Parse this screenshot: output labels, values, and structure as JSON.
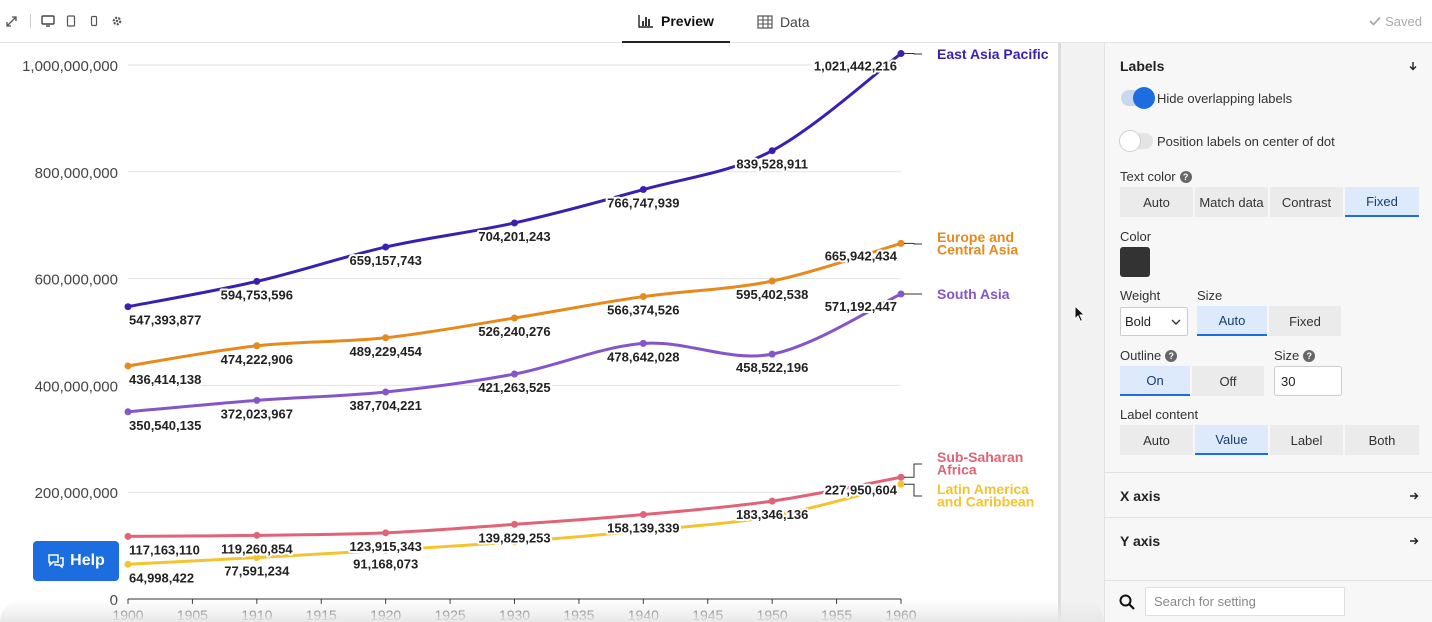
{
  "toolbar": {
    "tabs": [
      {
        "label": "Preview",
        "icon": "bar-chart-icon",
        "active": true
      },
      {
        "label": "Data",
        "icon": "table-icon",
        "active": false
      }
    ],
    "saved_label": "Saved"
  },
  "help": {
    "label": "Help"
  },
  "panel": {
    "labels_section": {
      "title": "Labels",
      "hide_overlapping": {
        "label": "Hide overlapping labels",
        "on": true
      },
      "position_center": {
        "label": "Position labels on center of dot",
        "on": false
      },
      "text_color": {
        "label": "Text color",
        "options": [
          "Auto",
          "Match data",
          "Contrast",
          "Fixed"
        ],
        "selected": "Fixed"
      },
      "color": {
        "label": "Color",
        "value": "#333333"
      },
      "weight": {
        "label": "Weight",
        "value": "Bold"
      },
      "size": {
        "label": "Size",
        "options": [
          "Auto",
          "Fixed"
        ],
        "selected": "Auto"
      },
      "outline": {
        "label": "Outline",
        "options": [
          "On",
          "Off"
        ],
        "selected": "On"
      },
      "outline_size": {
        "label": "Size",
        "value": "30"
      },
      "label_content": {
        "label": "Label content",
        "options": [
          "Auto",
          "Value",
          "Label",
          "Both"
        ],
        "selected": "Value"
      }
    },
    "x_axis": "X axis",
    "y_axis": "Y axis",
    "search": {
      "placeholder": "Search for setting"
    }
  },
  "chart_data": {
    "type": "line",
    "x": [
      1900,
      1910,
      1920,
      1930,
      1940,
      1950,
      1960
    ],
    "xlim": [
      1900,
      1960
    ],
    "ylim": [
      0,
      1000000000
    ],
    "xticks": [
      "1900",
      "1905",
      "1910",
      "1915",
      "1920",
      "1925",
      "1930",
      "1935",
      "1940",
      "1945",
      "1950",
      "1955",
      "1960"
    ],
    "yticks": [
      "0",
      "200,000,000",
      "400,000,000",
      "600,000,000",
      "800,000,000",
      "1,000,000,000"
    ],
    "grid": "horizontal",
    "series": [
      {
        "name": "East Asia Pacific",
        "color": "#3a1fb0",
        "values": [
          547393877,
          594753596,
          659157743,
          704201243,
          766747939,
          839528911,
          1021442216
        ],
        "labels": [
          "547,393,877",
          "594,753,596",
          "659,157,743",
          "704,201,243",
          "766,747,939",
          "839,528,911",
          "1,021,442,216"
        ]
      },
      {
        "name": "Europe and Central Asia",
        "color": "#e68a1e",
        "values": [
          436414138,
          474222906,
          489229454,
          526240276,
          566374526,
          595402538,
          665942434
        ],
        "labels": [
          "436,414,138",
          "474,222,906",
          "489,229,454",
          "526,240,276",
          "566,374,526",
          "595,402,538",
          "665,942,434"
        ]
      },
      {
        "name": "South Asia",
        "color": "#8456c9",
        "values": [
          350540135,
          372023967,
          387704221,
          421263525,
          478642028,
          458522196,
          571192447
        ],
        "labels": [
          "350,540,135",
          "372,023,967",
          "387,704,221",
          "421,263,525",
          "478,642,028",
          "458,522,196",
          "571,192,447"
        ]
      },
      {
        "name": "Sub-Saharan Africa",
        "color": "#e06378",
        "values": [
          117163110,
          119260854,
          123915343,
          139829253,
          158139339,
          183346136,
          227950604
        ],
        "labels": [
          "117,163,110",
          "119,260,854",
          "123,915,343",
          "139,829,253",
          "158,139,339",
          "183,346,136",
          "227,950,604"
        ]
      },
      {
        "name": "Latin America and Caribbean",
        "color": "#f4c430",
        "values": [
          64998422,
          77591234,
          91168073,
          107000000,
          128000000,
          155000000,
          215000000
        ],
        "labels": [
          "64,998,422",
          "77,591,234",
          "91,168,073",
          null,
          null,
          null,
          null
        ]
      }
    ]
  }
}
